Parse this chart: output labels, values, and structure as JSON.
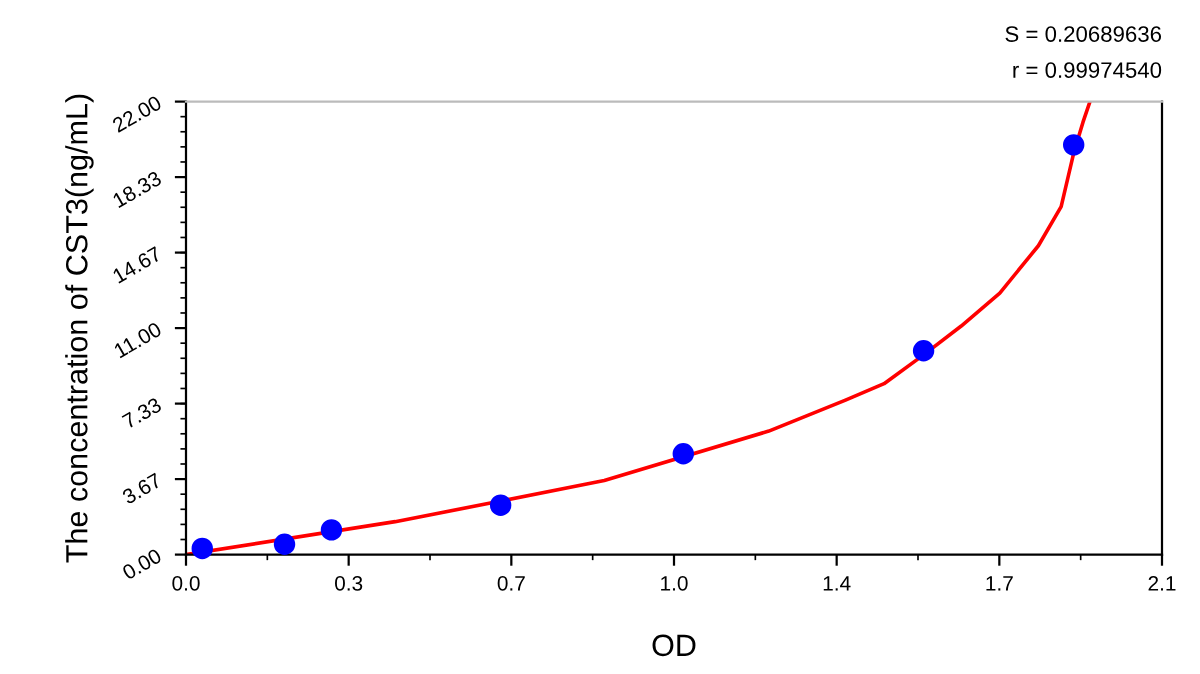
{
  "chart_data": {
    "type": "scatter",
    "xlabel": "OD",
    "ylabel": "The concentration of CST3(ng/mL)",
    "annotations": [
      "S = 0.20689636",
      "r = 0.99974540"
    ],
    "series": [
      {
        "color": "#0000ff",
        "marker": "circle",
        "x": [
          0.035,
          0.212,
          0.313,
          0.677,
          1.07,
          1.587,
          1.91
        ],
        "values": [
          0.3,
          0.5,
          1.2,
          2.4,
          4.9,
          9.9,
          19.9
        ]
      },
      {
        "type": "line",
        "color": "#ff0000",
        "marker": "none",
        "x": [
          0,
          0.45,
          0.677,
          0.9,
          1.254,
          1.419,
          1.502,
          1.587,
          1.668,
          1.751,
          1.834,
          1.883,
          1.91,
          1.93,
          1.945
        ],
        "values": [
          0,
          1.6,
          2.6,
          3.6,
          6.0,
          7.5,
          8.3,
          9.7,
          11.1,
          12.7,
          15.0,
          16.9,
          19.5,
          21.0,
          22.0
        ]
      }
    ],
    "xlim": [
      0,
      2.1
    ],
    "ylim": [
      0,
      22
    ],
    "xticks": [
      {
        "value": 0,
        "label": "0.0"
      },
      {
        "value": 0.35,
        "label": "0.3"
      },
      0.7,
      {
        "value": 1.05,
        "label": "1.0"
      },
      1.4,
      {
        "value": 1.75,
        "label": "1.7"
      },
      2.1
    ],
    "yticks": [
      {
        "value": 0,
        "label": "0.00"
      },
      {
        "value": 3.667,
        "label": "3.67"
      },
      {
        "value": 7.333,
        "label": "7.33"
      },
      {
        "value": 11,
        "label": "11.00"
      },
      {
        "value": 14.667,
        "label": "14.67"
      },
      {
        "value": 18.333,
        "label": "18.33"
      },
      {
        "value": 22,
        "label": "22.00"
      }
    ],
    "line_style": "solid",
    "grid": false,
    "legend": false
  }
}
